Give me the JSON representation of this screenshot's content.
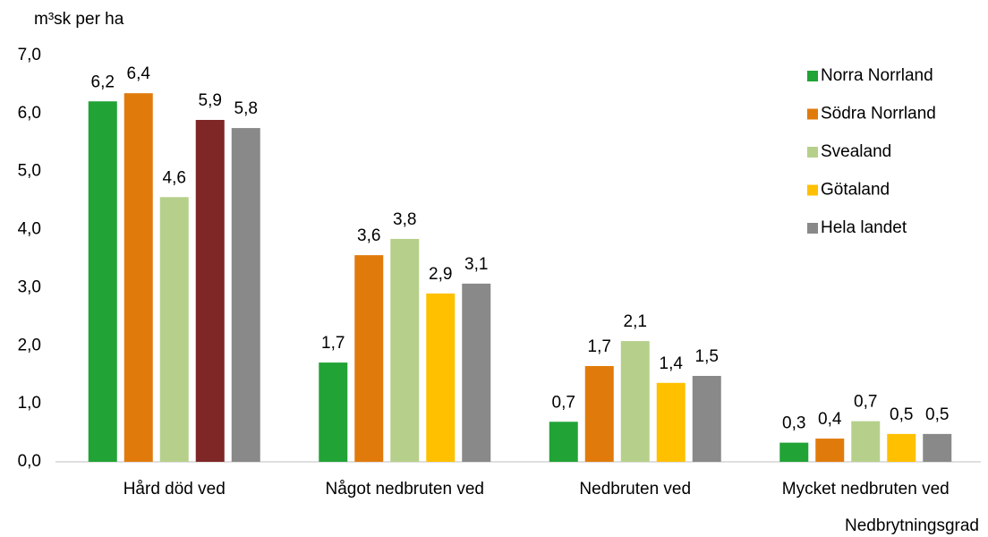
{
  "chart_data": {
    "type": "bar",
    "y_axis_label": "m³sk per ha",
    "x_axis_label": "Nedbrytningsgrad",
    "categories": [
      "Hård död ved",
      "Något nedbruten ved",
      "Nedbruten ved",
      "Mycket nedbruten ved"
    ],
    "series": [
      {
        "name": "Norra Norrland",
        "color": "#21a336",
        "values": [
          6.21,
          1.71,
          0.69,
          0.33
        ],
        "value_labels": [
          "6,2",
          "1,7",
          "0,7",
          "0,3"
        ]
      },
      {
        "name": "Södra Norrland",
        "color": "#e07b0b",
        "values": [
          6.35,
          3.56,
          1.65,
          0.4
        ],
        "value_labels": [
          "6,4",
          "3,6",
          "1,7",
          "0,4"
        ]
      },
      {
        "name": "Svealand",
        "color": "#b6d08b",
        "values": [
          4.56,
          3.84,
          2.08,
          0.7
        ],
        "value_labels": [
          "4,6",
          "3,8",
          "2,1",
          "0,7"
        ]
      },
      {
        "name": "Götaland",
        "color": "#ffc000",
        "colors": [
          "#7f2627",
          "#ffc000",
          "#ffc000",
          "#ffc000"
        ],
        "values": [
          5.89,
          2.9,
          1.36,
          0.48
        ],
        "value_labels": [
          "5,9",
          "2,9",
          "1,4",
          "0,5"
        ]
      },
      {
        "name": "Hela landet",
        "color": "#898989",
        "values": [
          5.75,
          3.07,
          1.48,
          0.48
        ],
        "value_labels": [
          "5,8",
          "3,1",
          "1,5",
          "0,5"
        ]
      }
    ],
    "ylim": [
      0,
      7
    ],
    "yticks": [
      {
        "value": 0,
        "label": "0,0"
      },
      {
        "value": 1,
        "label": "1,0"
      },
      {
        "value": 2,
        "label": "2,0"
      },
      {
        "value": 3,
        "label": "3,0"
      },
      {
        "value": 4,
        "label": "4,0"
      },
      {
        "value": 5,
        "label": "5,0"
      },
      {
        "value": 6,
        "label": "6,0"
      },
      {
        "value": 7,
        "label": "7,0"
      }
    ],
    "grid": false,
    "legend": "top-right"
  }
}
